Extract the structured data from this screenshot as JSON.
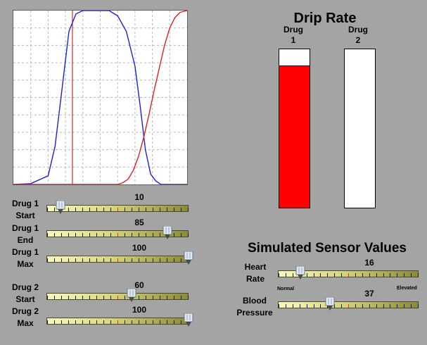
{
  "colors": {
    "background": "#a4a4a4",
    "grid": "#b8b8b8",
    "drug1_curve": "#1f1fe0",
    "drug2_curve": "#e01f1f",
    "marker": "#cc0000",
    "drip_fill": "#ff0000"
  },
  "chart_data": {
    "type": "line",
    "title": "",
    "xlabel": "",
    "ylabel": "",
    "xlim": [
      0,
      100
    ],
    "ylim": [
      0,
      100
    ],
    "grid": true,
    "marker_x": 34,
    "series": [
      {
        "x": [
          0,
          10,
          20,
          24,
          28,
          32,
          36,
          40,
          45,
          50,
          55,
          60,
          65,
          70,
          73,
          76,
          79,
          82,
          85,
          90,
          95,
          100
        ],
        "y": [
          0,
          0.5,
          5,
          22,
          55,
          88,
          98,
          100,
          100,
          100,
          100,
          97,
          88,
          68,
          45,
          20,
          6,
          2,
          0,
          0,
          0,
          0
        ]
      },
      {
        "x": [
          0,
          55,
          60,
          63,
          66,
          69,
          72,
          75,
          78,
          81,
          84,
          87,
          90,
          93,
          96,
          100
        ],
        "y": [
          0,
          0,
          0,
          1,
          3,
          8,
          16,
          27,
          40,
          54,
          67,
          80,
          90,
          96,
          99,
          100
        ]
      }
    ]
  },
  "drip_rate": {
    "title": "Drip Rate",
    "drugs": [
      {
        "line1": "Drug",
        "line2": "1",
        "level": 0.895
      },
      {
        "line1": "Drug",
        "line2": "2",
        "level": 0
      }
    ]
  },
  "sliders": [
    {
      "line1": "Drug 1",
      "line2": "Start",
      "value": "10",
      "fraction": 0.1
    },
    {
      "line1": "Drug 1",
      "line2": "End",
      "value": "85",
      "fraction": 0.85
    },
    {
      "line1": "Drug 1",
      "line2": "Max",
      "value": "100",
      "fraction": 1.0
    },
    {
      "line1": "Drug 2",
      "line2": "Start",
      "value": "60",
      "fraction": 0.6
    },
    {
      "line1": "Drug 2",
      "line2": "Max",
      "value": "100",
      "fraction": 1.0
    }
  ],
  "sensors": {
    "title": "Simulated Sensor Values",
    "heart_rate": {
      "line1": "Heart",
      "line2": "Rate",
      "value": "16",
      "fraction": 0.16
    },
    "blood_pressure": {
      "line1": "Blood",
      "line2": "Pressure",
      "value": "37",
      "fraction": 0.37
    },
    "scale_low": "Normal",
    "scale_high": "Elevated"
  }
}
